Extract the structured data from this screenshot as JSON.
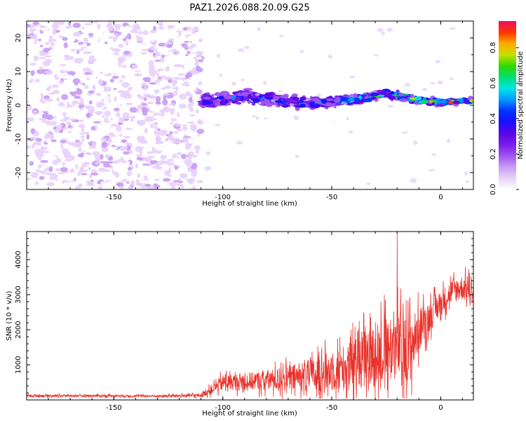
{
  "figure_title": "PAZ1.2026.088.20.09.G25",
  "colors": {
    "snr_line": "#e8322b",
    "axes": "#000000",
    "spectrum_palette": [
      "#ffffff",
      "#e9d2fb",
      "#c89cf4",
      "#9f55ef",
      "#7a1bea",
      "#5a05e6",
      "#1a10ff",
      "#0033ff",
      "#0099ff",
      "#00e5e5",
      "#00e070",
      "#2fd800",
      "#c6e000",
      "#ffaa00",
      "#ff3300",
      "#ee1065"
    ]
  },
  "chart_data": [
    {
      "type": "heatmap",
      "title": "",
      "xlabel": "Height of straight line (km)",
      "ylabel": "Frequency (Hz)",
      "xlim": [
        -190,
        15
      ],
      "ylim": [
        -25,
        25
      ],
      "xticks": [
        -150,
        -100,
        -50,
        0
      ],
      "yticks": [
        -20,
        -10,
        0,
        10,
        20
      ],
      "colorbar": {
        "label": "Normalized spectral amplitude",
        "range": [
          0.0,
          0.95
        ],
        "ticks": [
          0.0,
          0.2,
          0.4,
          0.6,
          0.8
        ],
        "tick_labels": [
          "0.0",
          "0.2",
          "0.4",
          "0.6",
          "0.8"
        ]
      },
      "regions": [
        {
          "name": "noise",
          "x_range": [
            -190,
            -110
          ],
          "freq_range": [
            -25,
            25
          ],
          "amplitude": [
            0.0,
            0.12
          ]
        },
        {
          "name": "sparse",
          "x_range": [
            -110,
            15
          ],
          "freq_range": [
            -25,
            25
          ],
          "amplitude": [
            0.0,
            0.05
          ]
        },
        {
          "name": "signal-band",
          "x_range": [
            -110,
            15
          ],
          "freq_center": [
            [
              -110,
              1.0
            ],
            [
              -90,
              2.5
            ],
            [
              -60,
              0.5
            ],
            [
              -40,
              1.5
            ],
            [
              -25,
              3.5
            ],
            [
              -10,
              1.5
            ],
            [
              0,
              0.8
            ],
            [
              15,
              1.5
            ]
          ],
          "half_width_hz": [
            3.0,
            0.8
          ],
          "amplitude": [
            0.15,
            0.95
          ]
        }
      ]
    },
    {
      "type": "line",
      "title": "",
      "xlabel": "Height of straight line (km)",
      "ylabel": "SNR (10 * v/v)",
      "xlim": [
        -190,
        15
      ],
      "ylim": [
        0,
        4800
      ],
      "xticks": [
        -150,
        -100,
        -50,
        0
      ],
      "yticks": [
        1000,
        2000,
        3000,
        4000
      ],
      "series": [
        {
          "name": "SNR",
          "x": [
            -190,
            -170,
            -150,
            -130,
            -110,
            -105,
            -100,
            -90,
            -80,
            -70,
            -60,
            -50,
            -40,
            -35,
            -30,
            -25,
            -20,
            -15,
            -10,
            -5,
            0,
            5,
            10,
            15
          ],
          "y_mean": [
            120,
            120,
            120,
            110,
            130,
            300,
            500,
            520,
            560,
            600,
            700,
            820,
            1000,
            1150,
            1250,
            1450,
            1550,
            1350,
            2000,
            2400,
            2750,
            3100,
            3200,
            3100
          ],
          "y_spread": [
            40,
            40,
            40,
            40,
            60,
            150,
            250,
            280,
            320,
            420,
            500,
            650,
            800,
            900,
            1000,
            1100,
            1150,
            1100,
            700,
            500,
            400,
            400,
            400,
            400
          ],
          "peak": {
            "x": -20,
            "y": 4800
          }
        }
      ]
    }
  ]
}
